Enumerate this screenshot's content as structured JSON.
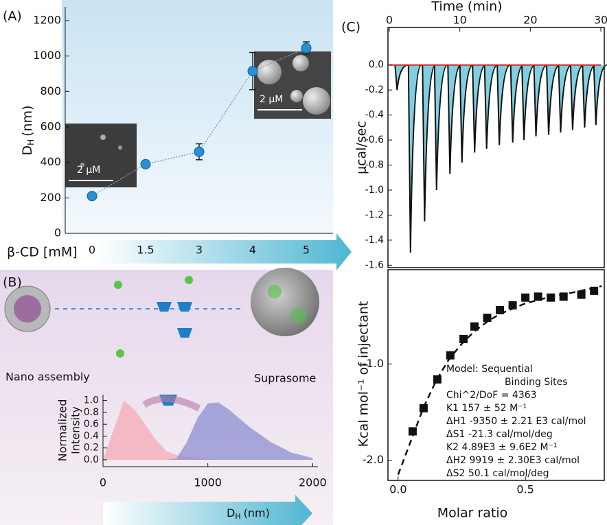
{
  "figure": {
    "panel_labels": [
      "(A)",
      "(B)",
      "(C)"
    ],
    "diagram_labels": [
      "Nano assembly",
      "Suprasome"
    ],
    "scale_bars": [
      "2 μM",
      "2 μM"
    ]
  },
  "chart_data": [
    {
      "type": "scatter",
      "categories": [
        "0",
        "1.5",
        "3",
        "4",
        "5"
      ],
      "values": [
        210,
        390,
        460,
        915,
        1045
      ],
      "errors": [
        null,
        null,
        45,
        105,
        35
      ],
      "color": "#2a90d4",
      "line_color": "#8a9bb0",
      "ylim": [
        0,
        1200
      ],
      "yticks": [
        0,
        200,
        400,
        600,
        800,
        1000,
        1200
      ],
      "ylabel": "D",
      "ylabel_sub": "H",
      "ylabel_unit": "(nm)",
      "xlabel": "β-CD [mM]"
    },
    {
      "type": "area",
      "x": [
        0,
        100,
        200,
        300,
        400,
        500,
        600,
        700,
        800,
        900,
        1000,
        1100,
        1200,
        1400,
        1600,
        1800,
        2000
      ],
      "series": [
        {
          "color": "#f5aab4",
          "values": [
            0,
            0.5,
            1.0,
            0.85,
            0.6,
            0.35,
            0.15,
            0.08,
            0.05,
            0.03,
            0.02,
            0,
            0,
            0,
            0,
            0,
            0
          ]
        },
        {
          "color": "#8e8fd2",
          "values": [
            0,
            0,
            0,
            0,
            0,
            0,
            0,
            0.02,
            0.3,
            0.7,
            0.95,
            0.97,
            0.85,
            0.55,
            0.3,
            0.12,
            0.03
          ]
        }
      ],
      "xlim": [
        0,
        2050
      ],
      "ylim": [
        0,
        1.1
      ],
      "xticks": [
        0,
        1000,
        2000
      ],
      "yticks": [
        {
          "value": 0,
          "label": "0.0"
        },
        0.2,
        0.4,
        0.6,
        0.8,
        {
          "value": 1,
          "label": "1.0"
        }
      ],
      "ylabel": [
        "Normalized",
        "Intensity"
      ],
      "xlabel": "D",
      "xlabel_sub": "H",
      "xlabel_unit": "(nm)"
    },
    {
      "type": "line",
      "x": [
        1.1,
        3.0,
        5.0,
        6.7,
        8.6,
        10.3,
        12.1,
        13.8,
        15.6,
        17.5,
        19.1,
        20.8,
        22.6,
        24.3,
        26.0,
        27.7,
        29.3
      ],
      "values": [
        -0.2,
        -1.5,
        -1.25,
        -1.0,
        -0.87,
        -0.78,
        -0.7,
        -0.67,
        -0.64,
        -0.62,
        -0.6,
        -0.57,
        -0.56,
        -0.54,
        -0.52,
        -0.5,
        -0.48
      ],
      "color": "#111111",
      "fill": "#7fcfe0",
      "baseline": 0,
      "baseline_color": "#e02020",
      "xlim": [
        0,
        30
      ],
      "ylim": [
        -1.62,
        0.3
      ],
      "xticks": [
        0,
        10,
        20,
        30
      ],
      "yticks": [
        {
          "value": 0,
          "label": "0.0"
        },
        -0.2,
        -0.4,
        -0.6,
        -0.8,
        {
          "value": -1,
          "label": "-1.0"
        },
        -1.2,
        -1.4,
        -1.6
      ],
      "xlabel": "Time (min)",
      "ylabel": "μcal/sec"
    },
    {
      "type": "scatter",
      "x": [
        0.057,
        0.1,
        0.154,
        0.205,
        0.257,
        0.3,
        0.35,
        0.4,
        0.45,
        0.5,
        0.55,
        0.6,
        0.65,
        0.72,
        0.77
      ],
      "values": [
        -1.7,
        -1.46,
        -1.16,
        -0.91,
        -0.74,
        -0.61,
        -0.52,
        -0.44,
        -0.39,
        -0.31,
        -0.3,
        -0.31,
        -0.3,
        -0.28,
        -0.24
      ],
      "fit_x": [
        0.0,
        0.05,
        0.1,
        0.15,
        0.2,
        0.25,
        0.3,
        0.35,
        0.4,
        0.5,
        0.6,
        0.7,
        0.8
      ],
      "fit_values": [
        -2.15,
        -1.8,
        -1.45,
        -1.17,
        -0.95,
        -0.79,
        -0.66,
        -0.56,
        -0.48,
        -0.37,
        -0.3,
        -0.25,
        -0.19
      ],
      "color": "#111111",
      "xlim": [
        -0.04,
        0.81
      ],
      "ylim": [
        -2.21,
        -0.02
      ],
      "xticks": [
        {
          "value": 0,
          "label": "0.0"
        },
        0.5
      ],
      "yticks": [
        {
          "value": -1,
          "label": "-1.0"
        },
        {
          "value": -2,
          "label": "-2.0"
        }
      ],
      "xlabel": "Molar ratio",
      "ylabel": "Kcal mol⁻¹ of injectant",
      "annotations": [
        "Model: Sequential",
        "Binding Sites",
        "Chi^2/DoF = 4363",
        "K1    157  ± 52 M⁻¹",
        "ΔH1   -9350 ± 2.21 E3 cal/mol",
        "ΔS1    -21.3 cal/mol/deg",
        "K2    4.89E3  ± 9.6E2 M⁻¹",
        "ΔH2   9919 ± 2.30E3 cal/mol",
        "ΔS2    50.1 cal/mol/deg"
      ]
    }
  ]
}
